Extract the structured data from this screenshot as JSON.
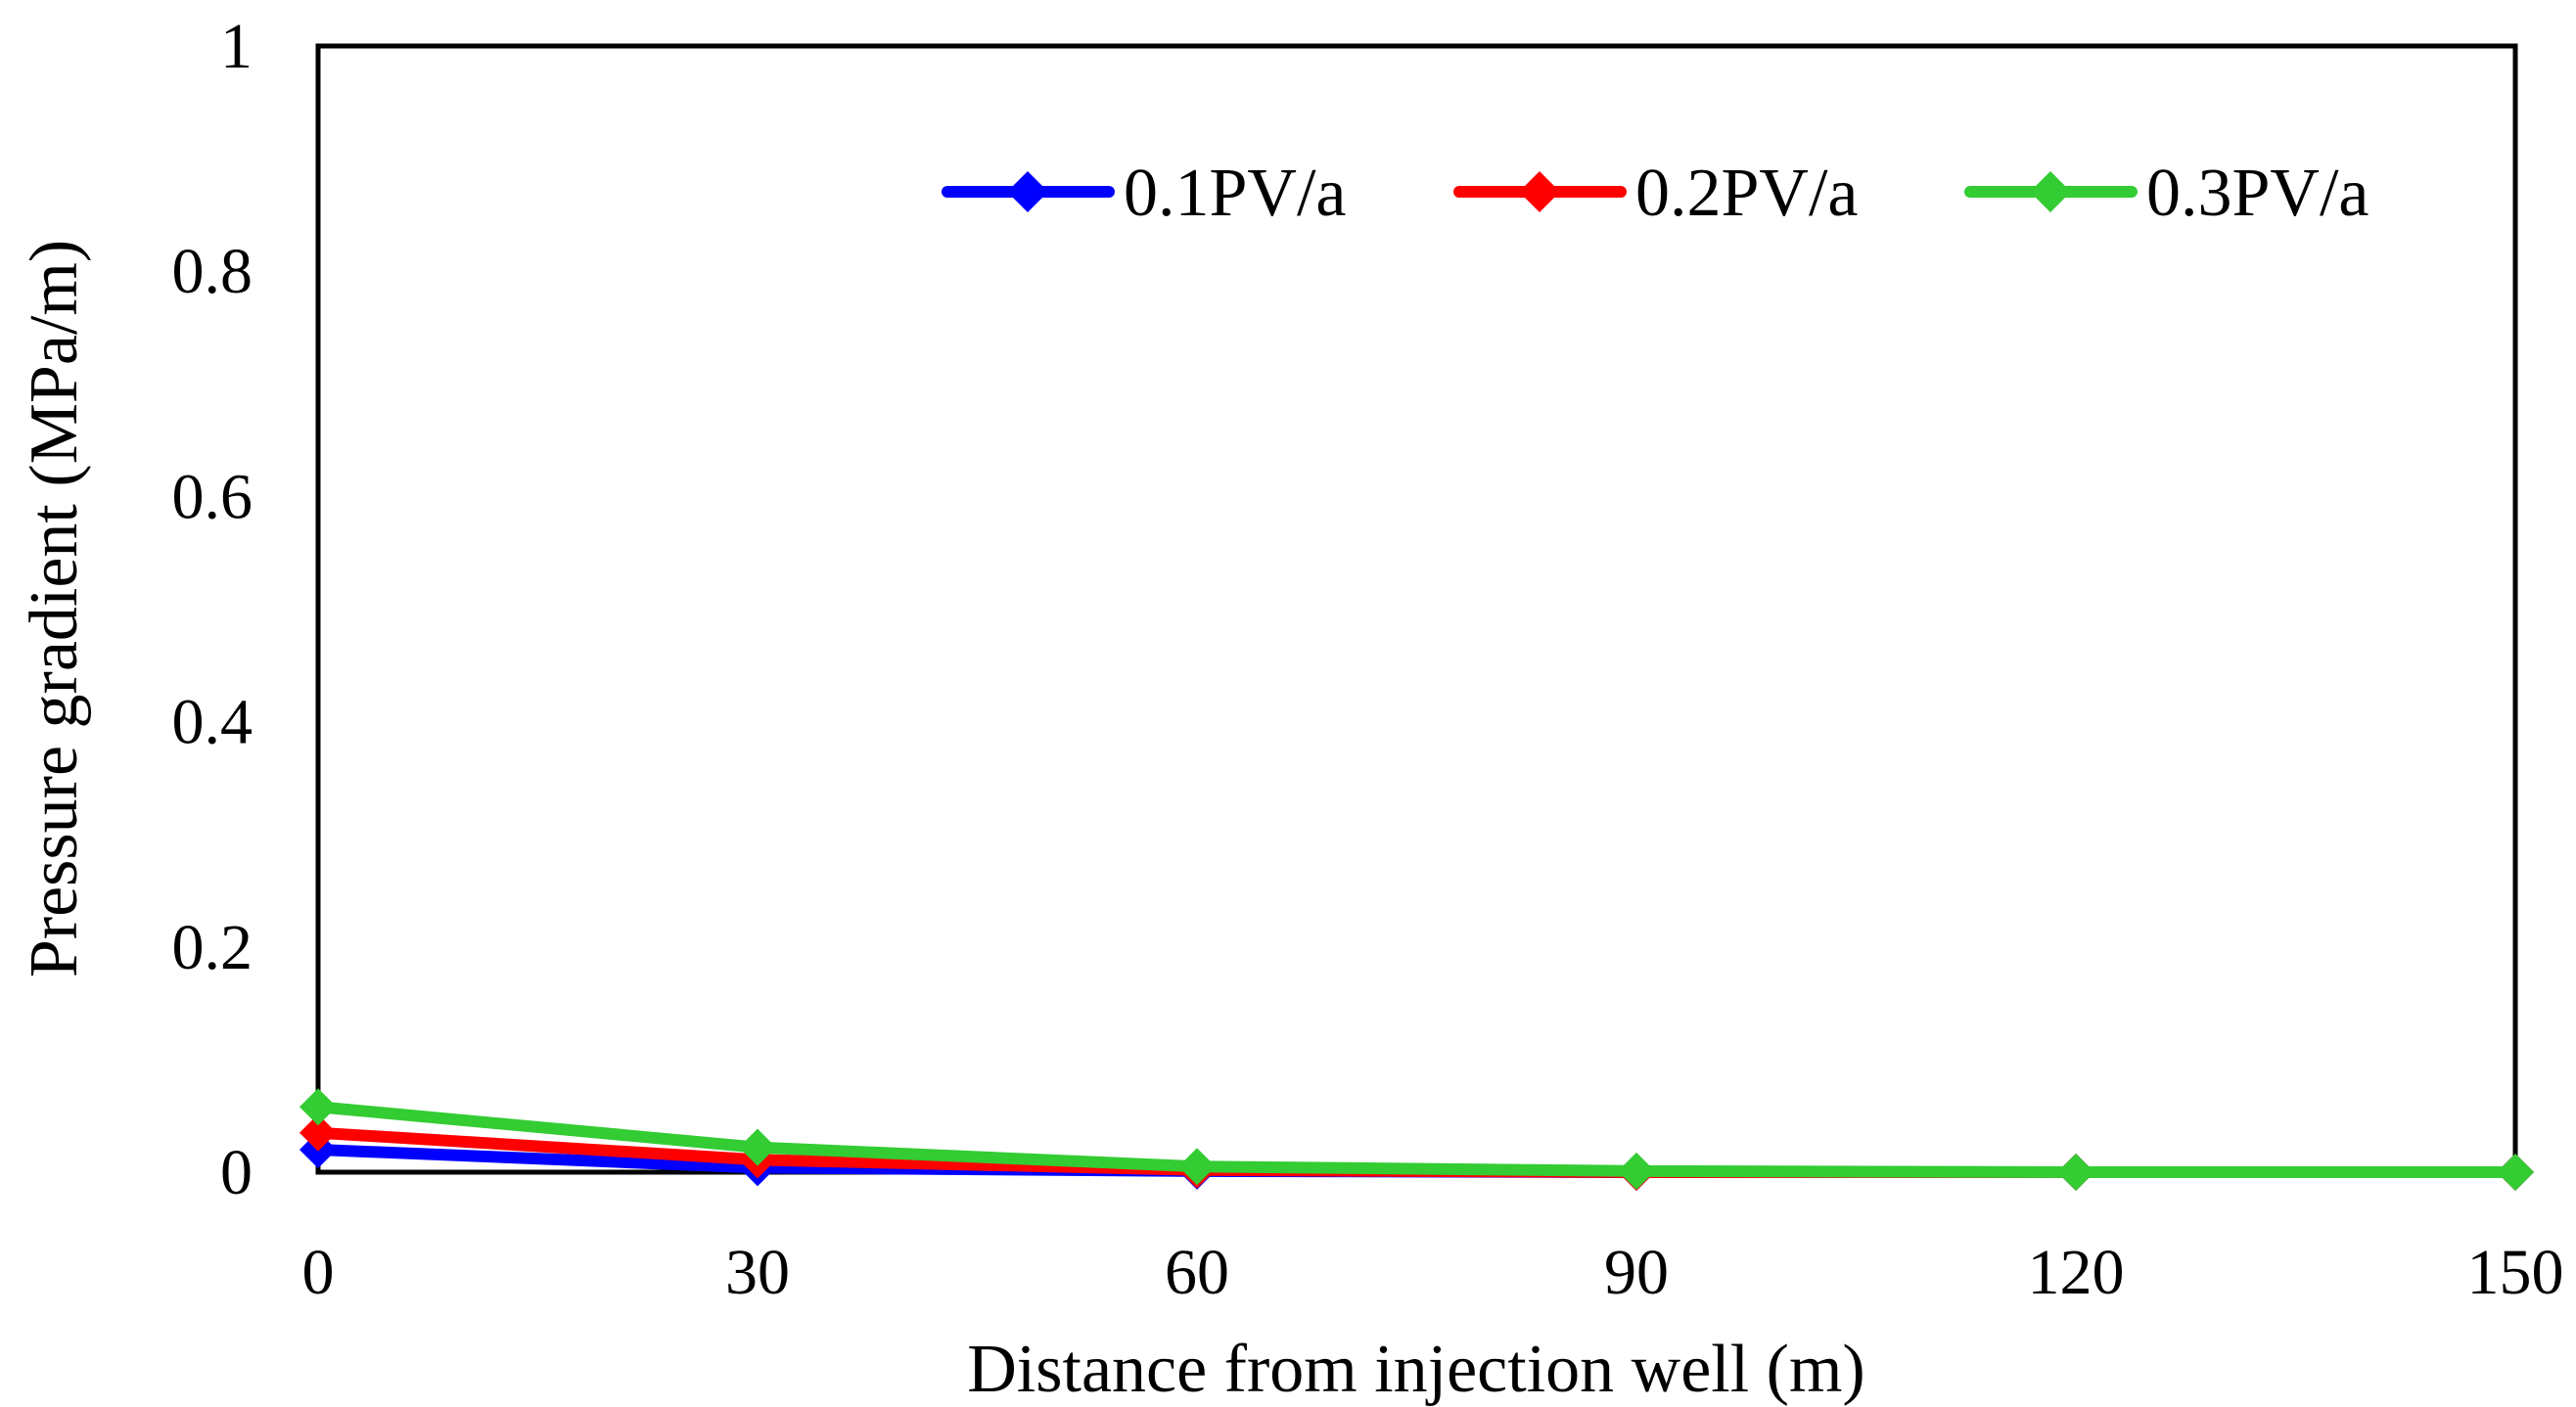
{
  "chart_data": {
    "type": "line",
    "title": "",
    "xlabel": "Distance from injection well (m)",
    "ylabel": "Pressure gradient (MPa/m)",
    "x": [
      0,
      30,
      60,
      90,
      120,
      150
    ],
    "xlim": [
      0,
      150
    ],
    "ylim": [
      0,
      1
    ],
    "xticks": [
      "0",
      "30",
      "60",
      "90",
      "120",
      "150"
    ],
    "yticks": [
      "0",
      "0.2",
      "0.4",
      "0.6",
      "0.8",
      "1"
    ],
    "legend_position": "top-right",
    "grid": false,
    "series": [
      {
        "name": "0.1PV/a",
        "color": "#0000ff",
        "values": [
          0.02,
          0.004,
          0.001,
          0.0,
          0.0,
          0.0
        ]
      },
      {
        "name": "0.2PV/a",
        "color": "#ff0000",
        "values": [
          0.035,
          0.011,
          0.002,
          0.0,
          0.0,
          0.0
        ]
      },
      {
        "name": "0.3PV/a",
        "color": "#33cc33",
        "values": [
          0.058,
          0.022,
          0.005,
          0.001,
          0.0,
          0.0
        ]
      }
    ]
  }
}
